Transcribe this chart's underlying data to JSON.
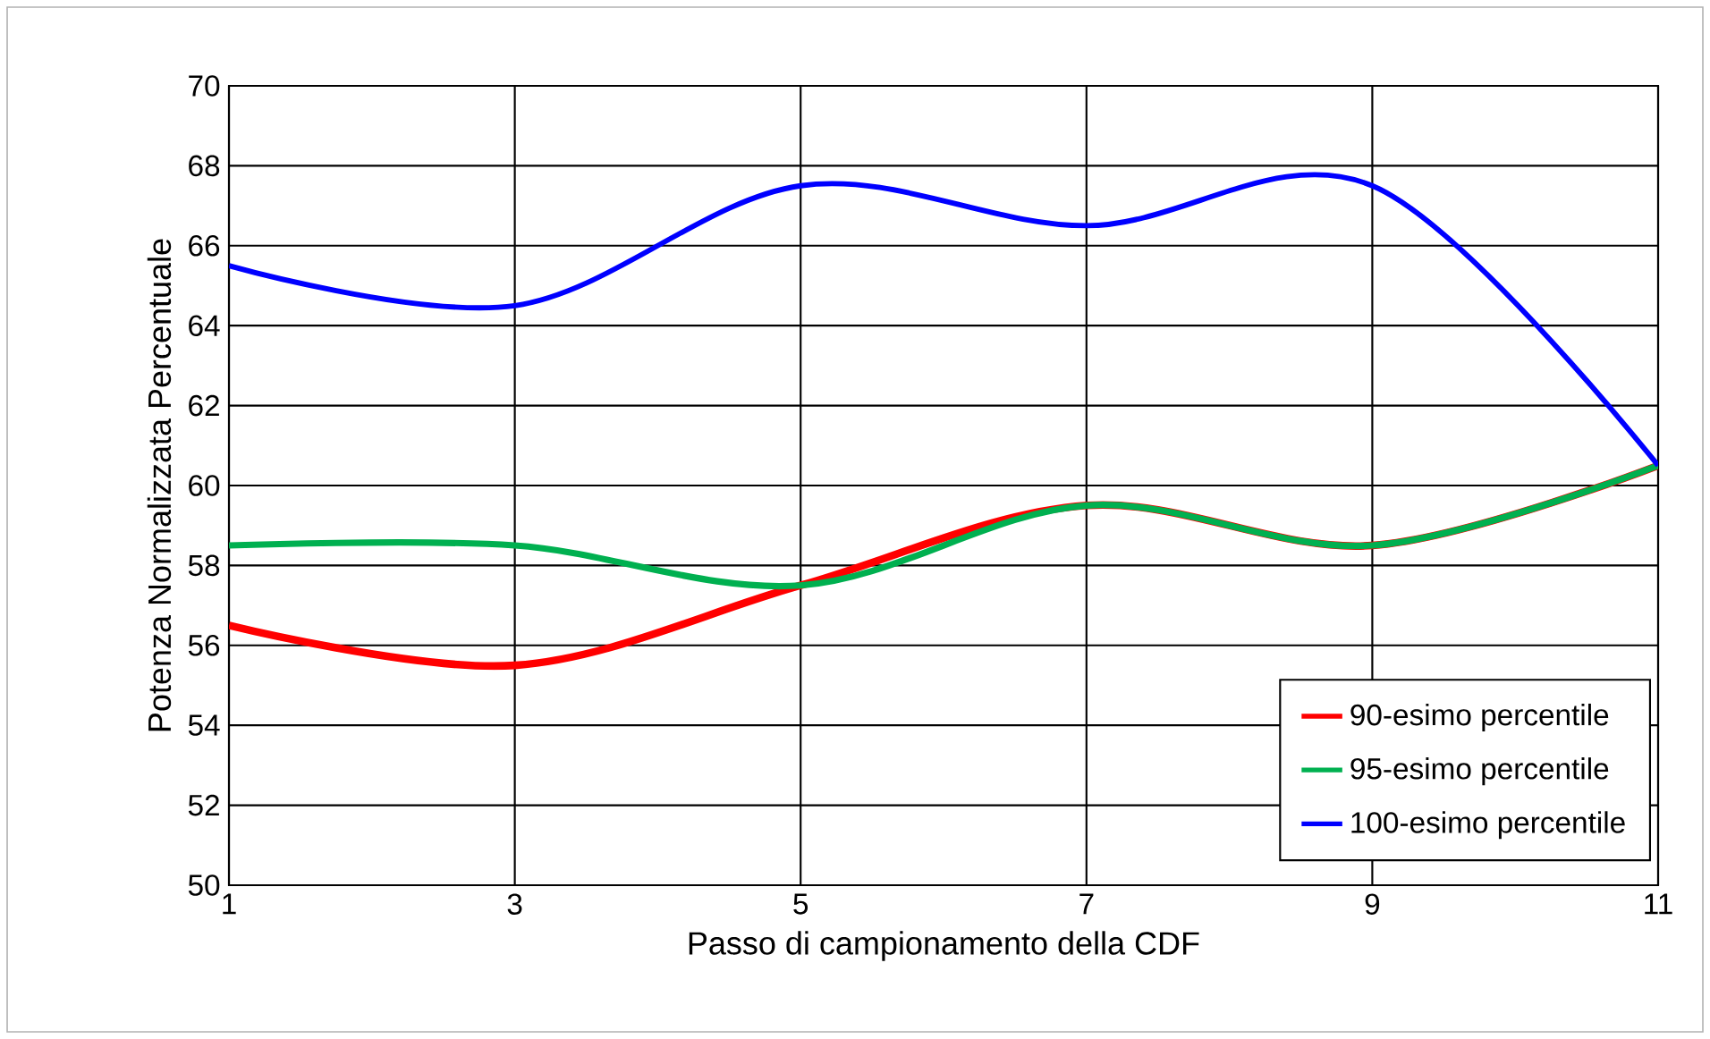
{
  "chart_data": {
    "type": "line",
    "xlabel": "Passo di campionamento della CDF",
    "ylabel": "Potenza Normalizzata Percentuale",
    "x": [
      1,
      3,
      5,
      7,
      9,
      11
    ],
    "series": [
      {
        "name": "90-esimo percentile",
        "color": "#ff0000",
        "values": [
          56.5,
          55.5,
          57.5,
          59.5,
          58.5,
          60.5
        ]
      },
      {
        "name": "95-esimo percentile",
        "color": "#00b050",
        "values": [
          58.5,
          58.5,
          57.5,
          59.5,
          58.5,
          60.5
        ]
      },
      {
        "name": "100-esimo percentile",
        "color": "#0000ff",
        "values": [
          65.5,
          64.5,
          67.5,
          66.5,
          67.5,
          60.5
        ]
      }
    ],
    "xlim": [
      1,
      11
    ],
    "xticks": [
      1,
      3,
      5,
      7,
      9,
      11
    ],
    "ylim": [
      50,
      70
    ],
    "yticks": [
      50,
      52,
      54,
      56,
      58,
      60,
      62,
      64,
      66,
      68,
      70
    ],
    "grid": true,
    "legend": "bottom right",
    "marker": "none",
    "line_style": "solid"
  }
}
